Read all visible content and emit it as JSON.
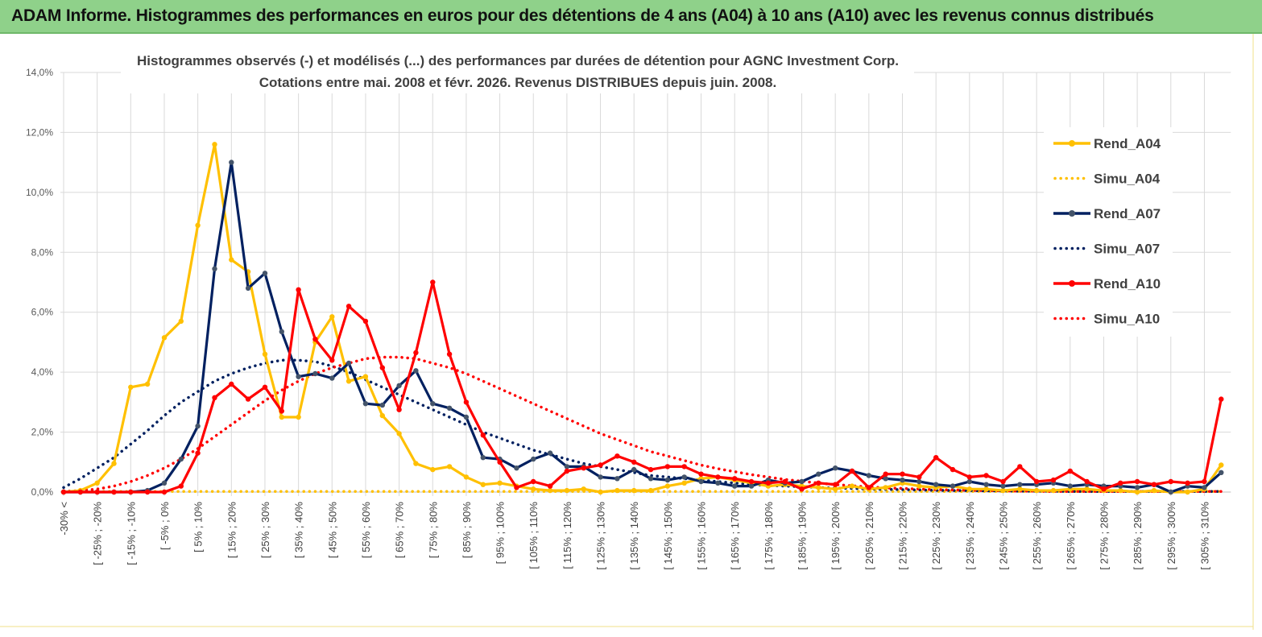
{
  "header": {
    "title": "ADAM Informe. Histogrammes des performances en euros pour des détentions de 4 ans (A04) à 10 ans (A10) avec les revenus connus distribués"
  },
  "chart_data": {
    "type": "line",
    "title_line1": "Histogrammes observés (-) et modélisés (...) des performances par durées de détention pour AGNC Investment Corp.",
    "title_line2": "Cotations entre mai. 2008 et févr. 2026. Revenus DISTRIBUES depuis juin. 2008.",
    "ylim": [
      0,
      14
    ],
    "yticks": [
      "0,0%",
      "2,0%",
      "4,0%",
      "6,0%",
      "8,0%",
      "10,0%",
      "12,0%",
      "14,0%"
    ],
    "xtick_labels": [
      "-30% <",
      "[ -25% ; -20%",
      "[ -15% ; -10%",
      "[ -5% ; 0%",
      "[ 5% ; 10%",
      "[ 15% ; 20%",
      "[ 25% ; 30%",
      "[ 35% ; 40%",
      "[ 45% ; 50%",
      "[ 55% ; 60%",
      "[ 65% ; 70%",
      "[ 75% ; 80%",
      "[ 85% ; 90%",
      "[ 95% ; 100%",
      "[ 105% ; 110%",
      "[ 115% ; 120%",
      "[ 125% ; 130%",
      "[ 135% ; 140%",
      "[ 145% ; 150%",
      "[ 155% ; 160%",
      "[ 165% ; 170%",
      "[ 175% ; 180%",
      "[ 185% ; 190%",
      "[ 195% ; 200%",
      "[ 205% ; 210%",
      "[ 215% ; 220%",
      "[ 225% ; 230%",
      "[ 235% ; 240%",
      "[ 245% ; 250%",
      "[ 255% ; 260%",
      "[ 265% ; 270%",
      "[ 275% ; 280%",
      "[ 285% ; 290%",
      "[ 295% ; 300%",
      "[ 305% ; 310%"
    ],
    "n_points": 70,
    "series": [
      {
        "name": "Rend_A04",
        "style": "solid",
        "color": "#ffc000",
        "values": [
          0.0,
          0.05,
          0.3,
          0.95,
          3.5,
          3.6,
          5.15,
          5.7,
          8.9,
          11.6,
          7.75,
          7.35,
          4.6,
          2.5,
          2.5,
          5.0,
          5.85,
          3.7,
          3.85,
          2.55,
          1.95,
          0.95,
          0.75,
          0.85,
          0.5,
          0.25,
          0.3,
          0.2,
          0.1,
          0.05,
          0.05,
          0.1,
          0.0,
          0.05,
          0.05,
          0.05,
          0.2,
          0.3,
          0.45,
          0.5,
          0.4,
          0.3,
          0.2,
          0.25,
          0.2,
          0.15,
          0.1,
          0.2,
          0.1,
          0.15,
          0.3,
          0.2,
          0.15,
          0.2,
          0.1,
          0.1,
          0.05,
          0.1,
          0.05,
          0.05,
          0.1,
          0.1,
          0.05,
          0.05,
          0.0,
          0.05,
          0.0,
          0.0,
          0.1,
          0.9
        ]
      },
      {
        "name": "Simu_A04",
        "style": "dotted",
        "color": "#ffc000",
        "values": [
          0.02,
          0.02,
          0.02,
          0.02,
          0.02,
          0.02,
          0.02,
          0.02,
          0.02,
          0.02,
          0.02,
          0.02,
          0.02,
          0.02,
          0.02,
          0.02,
          0.02,
          0.02,
          0.02,
          0.02,
          0.02,
          0.02,
          0.02,
          0.02,
          0.02,
          0.02,
          0.02,
          0.02,
          0.02,
          0.02,
          0.02,
          0.02,
          0.02,
          0.02,
          0.02,
          0.02,
          0.02,
          0.02,
          0.02,
          0.02,
          0.02,
          0.02,
          0.02,
          0.02,
          0.02,
          0.02,
          0.02,
          0.02,
          0.02,
          0.02,
          0.02,
          0.02,
          0.02,
          0.02,
          0.02,
          0.02,
          0.02,
          0.02,
          0.02,
          0.02,
          0.02,
          0.02,
          0.02,
          0.02,
          0.02,
          0.02,
          0.02,
          0.02,
          0.02,
          0.02
        ]
      },
      {
        "name": "Rend_A07",
        "style": "solid",
        "color": "#002060",
        "values": [
          0.0,
          0.0,
          0.0,
          0.0,
          0.0,
          0.05,
          0.3,
          1.1,
          2.2,
          7.45,
          11.0,
          6.8,
          7.3,
          5.35,
          3.85,
          3.95,
          3.8,
          4.3,
          2.95,
          2.9,
          3.55,
          4.05,
          2.95,
          2.8,
          2.5,
          1.15,
          1.1,
          0.8,
          1.1,
          1.3,
          0.85,
          0.85,
          0.5,
          0.45,
          0.75,
          0.45,
          0.4,
          0.5,
          0.35,
          0.3,
          0.2,
          0.2,
          0.4,
          0.3,
          0.35,
          0.6,
          0.8,
          0.7,
          0.55,
          0.45,
          0.4,
          0.35,
          0.25,
          0.2,
          0.35,
          0.25,
          0.2,
          0.25,
          0.25,
          0.3,
          0.2,
          0.25,
          0.2,
          0.2,
          0.15,
          0.25,
          0.0,
          0.2,
          0.15,
          0.65
        ]
      },
      {
        "name": "Simu_A07",
        "style": "dotted",
        "color": "#002060",
        "values": [
          0.15,
          0.45,
          0.8,
          1.15,
          1.6,
          2.05,
          2.55,
          3.0,
          3.35,
          3.7,
          3.95,
          4.15,
          4.3,
          4.4,
          4.4,
          4.35,
          4.2,
          4.0,
          3.75,
          3.5,
          3.25,
          3.0,
          2.75,
          2.5,
          2.25,
          2.0,
          1.8,
          1.6,
          1.4,
          1.25,
          1.1,
          0.95,
          0.85,
          0.75,
          0.65,
          0.55,
          0.5,
          0.45,
          0.4,
          0.35,
          0.3,
          0.25,
          0.22,
          0.2,
          0.18,
          0.15,
          0.13,
          0.12,
          0.1,
          0.09,
          0.08,
          0.07,
          0.06,
          0.05,
          0.05,
          0.04,
          0.04,
          0.03,
          0.03,
          0.03,
          0.02,
          0.02,
          0.02,
          0.02,
          0.02,
          0.02,
          0.02,
          0.02,
          0.02,
          0.02
        ]
      },
      {
        "name": "Rend_A10",
        "style": "solid",
        "color": "#ff0000",
        "values": [
          0.0,
          0.0,
          0.0,
          0.0,
          0.0,
          0.0,
          0.0,
          0.2,
          1.3,
          3.15,
          3.6,
          3.1,
          3.5,
          2.7,
          6.75,
          5.1,
          4.4,
          6.2,
          5.7,
          4.15,
          2.75,
          4.65,
          7.0,
          4.6,
          3.0,
          1.9,
          1.0,
          0.15,
          0.35,
          0.2,
          0.7,
          0.8,
          0.9,
          1.2,
          1.0,
          0.75,
          0.85,
          0.85,
          0.6,
          0.5,
          0.45,
          0.35,
          0.3,
          0.35,
          0.1,
          0.3,
          0.25,
          0.7,
          0.15,
          0.6,
          0.6,
          0.5,
          1.15,
          0.75,
          0.5,
          0.55,
          0.35,
          0.85,
          0.35,
          0.4,
          0.7,
          0.35,
          0.1,
          0.3,
          0.35,
          0.25,
          0.35,
          0.3,
          0.35,
          3.1
        ]
      },
      {
        "name": "Simu_A10",
        "style": "dotted",
        "color": "#ff0000",
        "values": [
          0.02,
          0.05,
          0.1,
          0.2,
          0.35,
          0.55,
          0.8,
          1.1,
          1.45,
          1.85,
          2.25,
          2.65,
          3.05,
          3.4,
          3.7,
          3.95,
          4.15,
          4.3,
          4.45,
          4.5,
          4.5,
          4.45,
          4.3,
          4.15,
          3.95,
          3.7,
          3.45,
          3.2,
          2.95,
          2.7,
          2.45,
          2.2,
          1.95,
          1.75,
          1.55,
          1.35,
          1.2,
          1.05,
          0.9,
          0.78,
          0.68,
          0.58,
          0.5,
          0.42,
          0.36,
          0.3,
          0.25,
          0.21,
          0.17,
          0.14,
          0.12,
          0.1,
          0.08,
          0.07,
          0.06,
          0.05,
          0.04,
          0.03,
          0.03,
          0.02,
          0.02,
          0.02,
          0.02,
          0.02,
          0.02,
          0.02,
          0.02,
          0.02,
          0.02,
          0.02
        ]
      }
    ],
    "legend_position": "right"
  }
}
